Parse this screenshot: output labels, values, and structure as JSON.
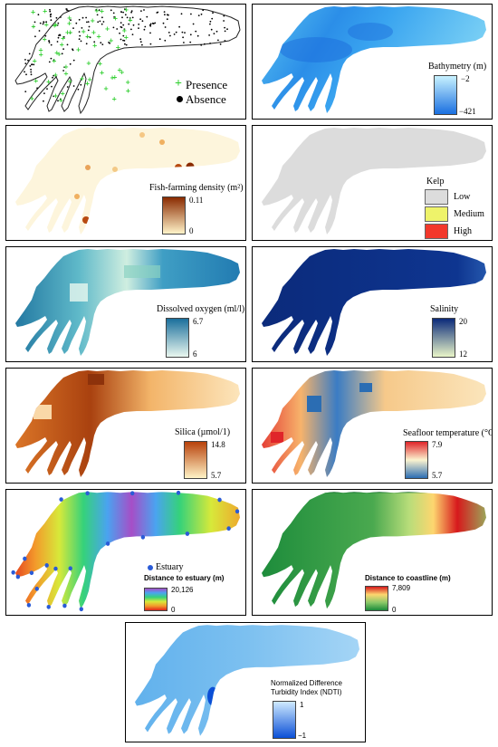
{
  "panels": [
    {
      "id": "presence",
      "legend": {
        "presence": "Presence",
        "absence": "Absence"
      }
    },
    {
      "id": "bathymetry",
      "title": "Bathymetry (m)",
      "max": "−2",
      "min": "−421",
      "colors": [
        "#c8f2ff",
        "#1a6fe0"
      ]
    },
    {
      "id": "fish",
      "title": "Fish-farming density (m²)",
      "max": "0.11",
      "min": "0",
      "colors": [
        "#8a2a00",
        "#fff3c8"
      ]
    },
    {
      "id": "kelp",
      "title": "Kelp",
      "classes": [
        {
          "label": "Low",
          "color": "#dcdcdc"
        },
        {
          "label": "Medium",
          "color": "#eef36a"
        },
        {
          "label": "High",
          "color": "#f2382b"
        }
      ]
    },
    {
      "id": "oxygen",
      "title": "Dissolved oxygen (ml/l)",
      "max": "6.7",
      "min": "6",
      "colors": [
        "#1a6f9c",
        "#e9f7ef"
      ]
    },
    {
      "id": "salinity",
      "title": "Salinity",
      "max": "20",
      "min": "12",
      "colors": [
        "#0b2a7a",
        "#e9f5c8"
      ]
    },
    {
      "id": "silica",
      "title": "Silica (µmol/1)",
      "max": "14.8",
      "min": "5.7",
      "colors": [
        "#b8410a",
        "#fff3c6"
      ]
    },
    {
      "id": "temperature",
      "title": "Seafloor temperature (°C)",
      "max": "7.9",
      "min": "5.7",
      "colors": [
        "#e0252a",
        "#fbf3cf",
        "#2b6db3"
      ]
    },
    {
      "id": "estuary",
      "legend_point": "Estuary",
      "title": "Distance to estuary (m)",
      "max": "20,126",
      "min": "0",
      "colors": [
        "#a64ec7",
        "#4aa3f0",
        "#35d27a",
        "#d7e93a",
        "#f39a2b",
        "#e0231b"
      ]
    },
    {
      "id": "coastline",
      "title": "Distance to coastline (m)",
      "max": "7,809",
      "min": "0",
      "colors": [
        "#d7191c",
        "#fdd66f",
        "#8cc969",
        "#1a8a3a"
      ]
    },
    {
      "id": "ndti",
      "title_line1": "Normalized Difference",
      "title_line2": "Turbidity Index (NDTI)",
      "max": "1",
      "min": "−1",
      "colors": [
        "#cfeaff",
        "#0b4fd6"
      ]
    }
  ]
}
